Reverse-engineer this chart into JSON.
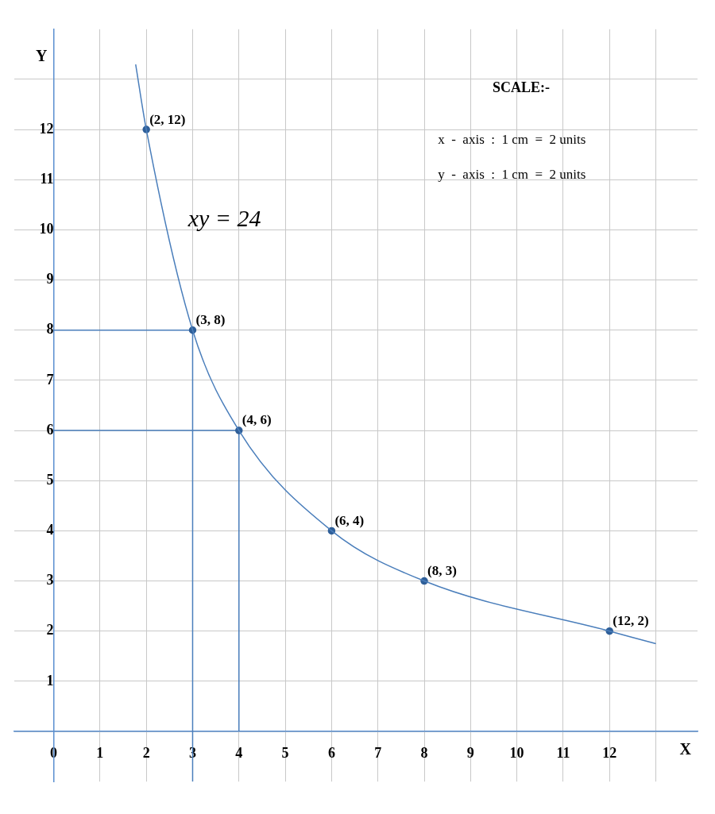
{
  "chart_data": {
    "type": "line",
    "xlabel": "X",
    "ylabel": "Y",
    "xlim": [
      -0.85,
      13.9
    ],
    "ylim": [
      -1,
      14
    ],
    "xticks": [
      0,
      1,
      2,
      3,
      4,
      5,
      6,
      7,
      8,
      9,
      10,
      11,
      12,
      {
        "value": 13,
        "label": null
      }
    ],
    "yticks": [
      {
        "value": 0,
        "label": null
      },
      1,
      2,
      3,
      4,
      5,
      6,
      7,
      8,
      9,
      10,
      11,
      12,
      {
        "value": 13,
        "label": null
      }
    ],
    "grid": true,
    "series": [
      {
        "color": "#4a7ebb",
        "marker": "none",
        "x": [
          1.77,
          2,
          3,
          4,
          6,
          8,
          12,
          13
        ],
        "values": [
          13.3,
          12,
          8,
          6,
          4,
          3,
          2,
          1.75
        ]
      },
      {
        "type": "scatter",
        "color": "#2f5f99",
        "marker": "circle",
        "x": [
          2,
          3,
          4,
          6,
          8,
          12
        ],
        "values": [
          12,
          8,
          6,
          4,
          3,
          2
        ],
        "value_labels": [
          "(2, 12)",
          "(3, 8)",
          "(4, 6)",
          "(6, 4)",
          "(8, 3)",
          "(12, 2)"
        ]
      },
      {
        "color": "#4a7ebb",
        "marker": "none",
        "x": [
          0,
          3,
          3
        ],
        "values": [
          8,
          8,
          -1
        ]
      },
      {
        "color": "#4a7ebb",
        "marker": "none",
        "x": [
          0,
          4,
          4
        ],
        "values": [
          6,
          6,
          0
        ]
      }
    ],
    "annotations": [
      "SCALE:-",
      "x  -  axis  :  1 cm  =  2 units",
      "y  -  axis  :  1 cm  =  2 units",
      "xy = 24"
    ]
  }
}
